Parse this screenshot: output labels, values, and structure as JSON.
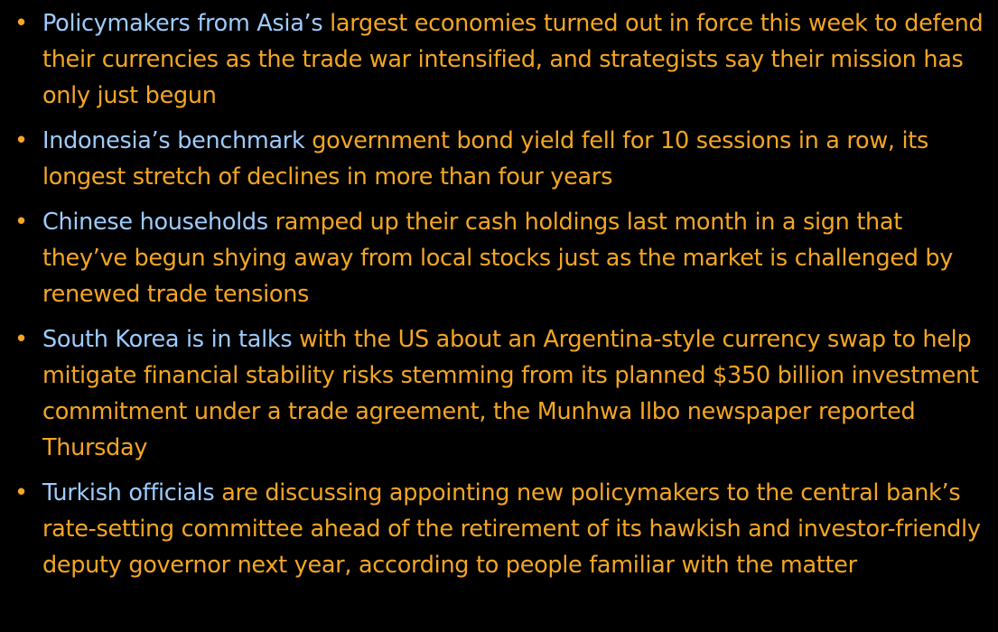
{
  "colors": {
    "background": "#000000",
    "body_text": "#f5a623",
    "link_text": "#9ecbff"
  },
  "bullet_glyph": "•",
  "items": [
    {
      "link": "Policymakers from Asia’s",
      "text": " largest economies turned out in force this week to defend their currencies as the trade war intensified, and strategists say their mission has only just begun"
    },
    {
      "link": "Indonesia’s benchmark",
      "text": " government bond yield fell for 10 sessions in a row, its longest stretch of declines in more than four years"
    },
    {
      "link": "Chinese households",
      "text": " ramped up their cash holdings last month in a sign that they’ve begun shying away from local stocks just as the market is challenged by renewed trade tensions"
    },
    {
      "link": "South Korea is in talks",
      "text": " with the US about an Argentina-style currency swap to help mitigate financial stability risks stemming from its planned $350 billion investment commitment under a trade agreement, the Munhwa Ilbo newspaper reported Thursday"
    },
    {
      "link": "Turkish officials",
      "text": " are discussing appointing new policymakers to the central bank’s rate-setting committee ahead of the retirement of its hawkish and investor-friendly deputy governor next year, according to people familiar with the matter"
    }
  ]
}
